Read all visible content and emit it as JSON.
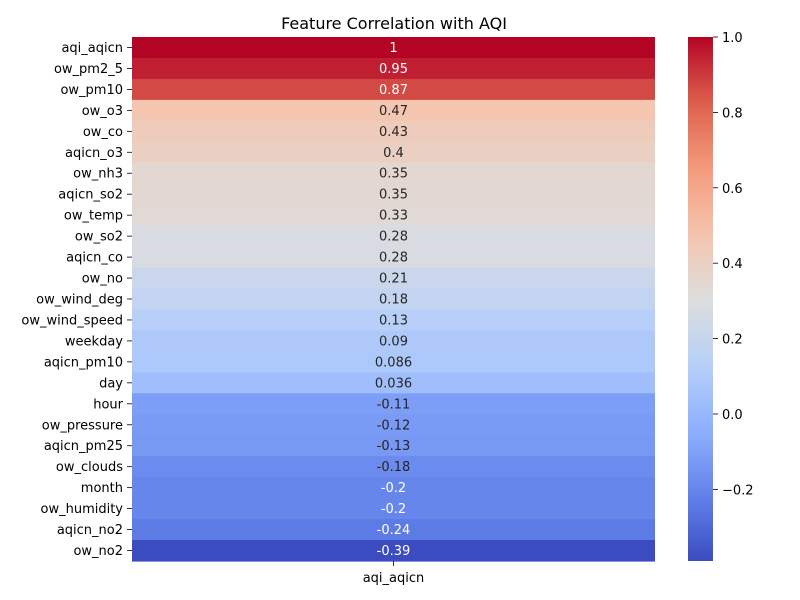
{
  "chart_data": {
    "type": "heatmap",
    "title": "Feature Correlation with AQI",
    "xlabel": "",
    "ylabel": "",
    "columns": [
      "aqi_aqicn"
    ],
    "rows": [
      "aqi_aqicn",
      "ow_pm2_5",
      "ow_pm10",
      "ow_o3",
      "ow_co",
      "aqicn_o3",
      "ow_nh3",
      "aqicn_so2",
      "ow_temp",
      "ow_so2",
      "aqicn_co",
      "ow_no",
      "ow_wind_deg",
      "ow_wind_speed",
      "weekday",
      "aqicn_pm10",
      "day",
      "hour",
      "ow_pressure",
      "aqicn_pm25",
      "ow_clouds",
      "month",
      "ow_humidity",
      "aqicn_no2",
      "ow_no2"
    ],
    "values": [
      1.0,
      0.95,
      0.87,
      0.47,
      0.43,
      0.4,
      0.35,
      0.35,
      0.33,
      0.28,
      0.28,
      0.21,
      0.18,
      0.13,
      0.09,
      0.086,
      0.036,
      -0.11,
      -0.12,
      -0.13,
      -0.18,
      -0.2,
      -0.2,
      -0.24,
      -0.39
    ],
    "annotations": [
      "1",
      "0.95",
      "0.87",
      "0.47",
      "0.43",
      "0.4",
      "0.35",
      "0.35",
      "0.33",
      "0.28",
      "0.28",
      "0.21",
      "0.18",
      "0.13",
      "0.09",
      "0.086",
      "0.036",
      "-0.11",
      "-0.12",
      "-0.13",
      "-0.18",
      "-0.2",
      "-0.2",
      "-0.24",
      "-0.39"
    ],
    "colormap": "coolwarm",
    "colorbar": {
      "vmin": -0.39,
      "vmax": 1.0,
      "ticks": [
        1.0,
        0.8,
        0.6,
        0.4,
        0.2,
        0.0,
        -0.2
      ],
      "tick_labels": [
        "1.0",
        "0.8",
        "0.6",
        "0.4",
        "0.2",
        "0.0",
        "−0.2"
      ]
    }
  }
}
